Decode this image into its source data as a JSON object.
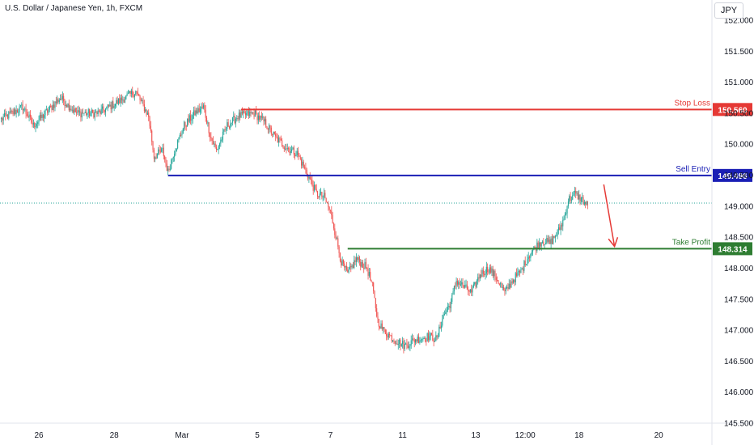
{
  "header": {
    "symbol": "U.S. Dollar / Japanese Yen, 1h, FXCM",
    "currency": "JPY"
  },
  "colors": {
    "up": "#26a69a",
    "down": "#ef5350",
    "stop": "#e53935",
    "entry": "#1a1fb5",
    "target": "#2e7d32",
    "arrow": "#e53935",
    "grid": "#f0f3fa",
    "axis_text": "#131722",
    "current_price_line": "#26a69a"
  },
  "chart_data": {
    "type": "candlestick",
    "title": "U.S. Dollar / Japanese Yen, 1h, FXCM",
    "y_axis": {
      "ticks": [
        "152.000",
        "151.500",
        "151.000",
        "150.500",
        "150.000",
        "149.500",
        "149.000",
        "148.500",
        "148.000",
        "147.500",
        "147.000",
        "146.500",
        "146.000",
        "145.500"
      ],
      "ylim": [
        145.5,
        152.0
      ],
      "currency": "JPY"
    },
    "x_axis": {
      "ticks": [
        {
          "label": "26",
          "i": 35
        },
        {
          "label": "28",
          "i": 105
        },
        {
          "label": "Mar",
          "i": 168
        },
        {
          "label": "5",
          "i": 238
        },
        {
          "label": "7",
          "i": 306
        },
        {
          "label": "11",
          "i": 373
        },
        {
          "label": "13",
          "i": 441
        },
        {
          "label": "12:00",
          "i": 487
        },
        {
          "label": "18",
          "i": 537
        },
        {
          "label": "20",
          "i": 611
        }
      ]
    },
    "levels": [
      {
        "name": "Stop Loss",
        "price": 150.56,
        "label": "150.560",
        "start_i": 223
      },
      {
        "name": "Sell Entry",
        "price": 149.496,
        "label": "149.496",
        "start_i": 155
      },
      {
        "name": "Take Profit",
        "price": 148.314,
        "label": "148.314",
        "start_i": 322
      }
    ],
    "current_price": 149.05,
    "projection_arrow": {
      "from": [
        560,
        149.35
      ],
      "to": [
        570,
        148.35
      ]
    },
    "anchors": [
      [
        0,
        150.4
      ],
      [
        20,
        150.6
      ],
      [
        30,
        150.3
      ],
      [
        55,
        150.75
      ],
      [
        70,
        150.5
      ],
      [
        90,
        150.5
      ],
      [
        105,
        150.65
      ],
      [
        125,
        150.85
      ],
      [
        137,
        150.45
      ],
      [
        142,
        149.8
      ],
      [
        150,
        149.9
      ],
      [
        155,
        149.55
      ],
      [
        160,
        149.85
      ],
      [
        170,
        150.3
      ],
      [
        180,
        150.5
      ],
      [
        188,
        150.6
      ],
      [
        195,
        150.1
      ],
      [
        200,
        149.9
      ],
      [
        210,
        150.3
      ],
      [
        220,
        150.45
      ],
      [
        235,
        150.5
      ],
      [
        245,
        150.35
      ],
      [
        255,
        150.1
      ],
      [
        265,
        149.95
      ],
      [
        275,
        149.85
      ],
      [
        285,
        149.5
      ],
      [
        293,
        149.2
      ],
      [
        300,
        149.15
      ],
      [
        306,
        148.9
      ],
      [
        310,
        148.6
      ],
      [
        316,
        148.1
      ],
      [
        322,
        147.9
      ],
      [
        330,
        148.15
      ],
      [
        340,
        148.0
      ],
      [
        345,
        147.7
      ],
      [
        350,
        147.15
      ],
      [
        355,
        147.0
      ],
      [
        365,
        146.85
      ],
      [
        375,
        146.75
      ],
      [
        385,
        146.85
      ],
      [
        398,
        146.9
      ],
      [
        405,
        146.85
      ],
      [
        410,
        147.2
      ],
      [
        418,
        147.45
      ],
      [
        423,
        147.8
      ],
      [
        430,
        147.7
      ],
      [
        437,
        147.6
      ],
      [
        445,
        147.9
      ],
      [
        453,
        148.0
      ],
      [
        460,
        147.85
      ],
      [
        468,
        147.6
      ],
      [
        475,
        147.8
      ],
      [
        483,
        147.95
      ],
      [
        490,
        148.2
      ],
      [
        497,
        148.35
      ],
      [
        503,
        148.45
      ],
      [
        510,
        148.4
      ],
      [
        518,
        148.6
      ],
      [
        523,
        148.8
      ],
      [
        527,
        149.1
      ],
      [
        533,
        149.2
      ],
      [
        540,
        149.1
      ],
      [
        545,
        149.0
      ]
    ]
  }
}
